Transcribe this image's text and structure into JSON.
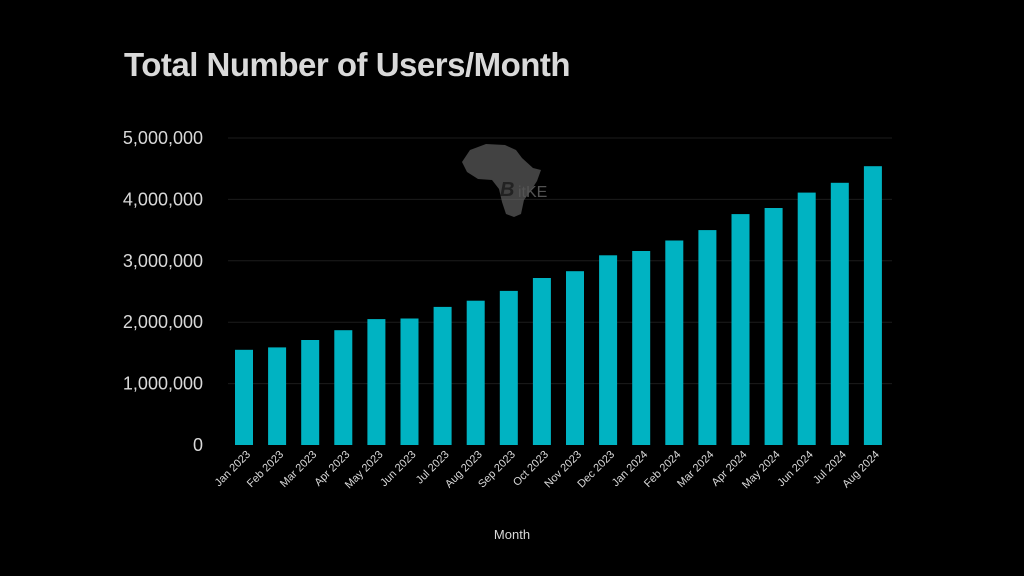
{
  "chart_data": {
    "type": "bar",
    "title": "Total Number of Users/Month",
    "xlabel": "Month",
    "ylabel": "",
    "ylim": [
      0,
      5000000
    ],
    "yticks": [
      0,
      1000000,
      2000000,
      3000000,
      4000000,
      5000000
    ],
    "ytick_labels": [
      "0",
      "1,000,000",
      "2,000,000",
      "3,000,000",
      "4,000,000",
      "5,000,000"
    ],
    "grid": true,
    "categories": [
      "Jan 2023",
      "Feb 2023",
      "Mar 2023",
      "Apr 2023",
      "May 2023",
      "Jun 2023",
      "Jul 2023",
      "Aug 2023",
      "Sep 2023",
      "Oct 2023",
      "Nov 2023",
      "Dec 2023",
      "Jan 2024",
      "Feb 2024",
      "Mar 2024",
      "Apr 2024",
      "May 2024",
      "Jun 2024",
      "Jul 2024",
      "Aug 2024"
    ],
    "values": [
      1550000,
      1590000,
      1710000,
      1870000,
      2050000,
      2060000,
      2250000,
      2350000,
      2510000,
      2720000,
      2830000,
      3090000,
      3160000,
      3330000,
      3500000,
      3760000,
      3860000,
      4110000,
      4270000,
      4540000
    ],
    "bar_color": "#00b3c2",
    "background_color": "#000000"
  },
  "logo": {
    "name": "africa-map-logo",
    "text": "itKE",
    "symbol": "B"
  }
}
